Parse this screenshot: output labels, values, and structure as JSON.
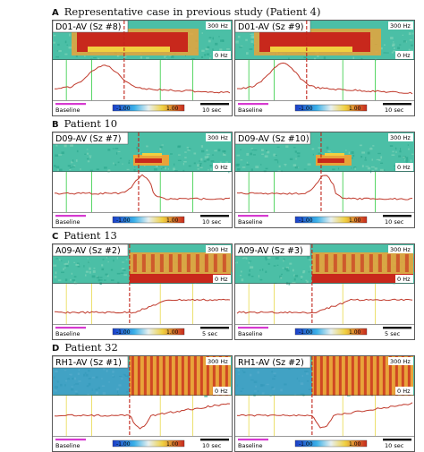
{
  "sections": [
    {
      "letter": "A",
      "title": "Representative case in previous study (Patient 4)",
      "panels": [
        {
          "channel": "D01-AV (Sz #8)",
          "top_hz": "300 Hz",
          "bottom_hz": "0 Hz",
          "baseline": "Baseline",
          "scale_min": "-1.00",
          "scale_max": "1.00",
          "time_bar": "10 sec",
          "style": "A1"
        },
        {
          "channel": "D01-AV (Sz #9)",
          "top_hz": "300 Hz",
          "bottom_hz": "0 Hz",
          "baseline": "Baseline",
          "scale_min": "-1.00",
          "scale_max": "1.00",
          "time_bar": "10 sec",
          "style": "A2"
        }
      ]
    },
    {
      "letter": "B",
      "title": "Patient 10",
      "panels": [
        {
          "channel": "D09-AV (Sz #7)",
          "top_hz": "300 Hz",
          "bottom_hz": "0 Hz",
          "baseline": "Baseline",
          "scale_min": "-1.00",
          "scale_max": "1.00",
          "time_bar": "10 sec",
          "style": "B1"
        },
        {
          "channel": "D09-AV (Sz #10)",
          "top_hz": "300 Hz",
          "bottom_hz": "0 Hz",
          "baseline": "Baseline",
          "scale_min": "-1.00",
          "scale_max": "1.00",
          "time_bar": "10 sec",
          "style": "B2"
        }
      ]
    },
    {
      "letter": "C",
      "title": "Patient 13",
      "panels": [
        {
          "channel": "A09-AV (Sz #2)",
          "top_hz": "300 Hz",
          "bottom_hz": "0 Hz",
          "baseline": "Baseline",
          "scale_min": "-1.00",
          "scale_max": "1.00",
          "time_bar": "5 sec",
          "style": "C1"
        },
        {
          "channel": "A09-AV (Sz #3)",
          "top_hz": "300 Hz",
          "bottom_hz": "0 Hz",
          "baseline": "Baseline",
          "scale_min": "-1.00",
          "scale_max": "1.00",
          "time_bar": "5 sec",
          "style": "C2"
        }
      ]
    },
    {
      "letter": "D",
      "title": "Patient 32",
      "panels": [
        {
          "channel": "RH1-AV (Sz #1)",
          "top_hz": "300 Hz",
          "bottom_hz": "0 Hz",
          "baseline": "Baseline",
          "scale_min": "-1.00",
          "scale_max": "1.00",
          "time_bar": "10 sec",
          "style": "D1"
        },
        {
          "channel": "RH1-AV (Sz #2)",
          "top_hz": "300 Hz",
          "bottom_hz": "0 Hz",
          "baseline": "Baseline",
          "scale_min": "-1.00",
          "scale_max": "1.00",
          "time_bar": "10 sec",
          "style": "D2"
        }
      ]
    }
  ],
  "colors": {
    "spectrogram_bg": "#4bbfa6",
    "hot": "#c8281c",
    "trace": "#c0392b",
    "baseline_bar": "#d63ad0",
    "onset_line": "#c0241a",
    "marker_green": "#2ecc40",
    "marker_yellow": "#e8d84a"
  }
}
